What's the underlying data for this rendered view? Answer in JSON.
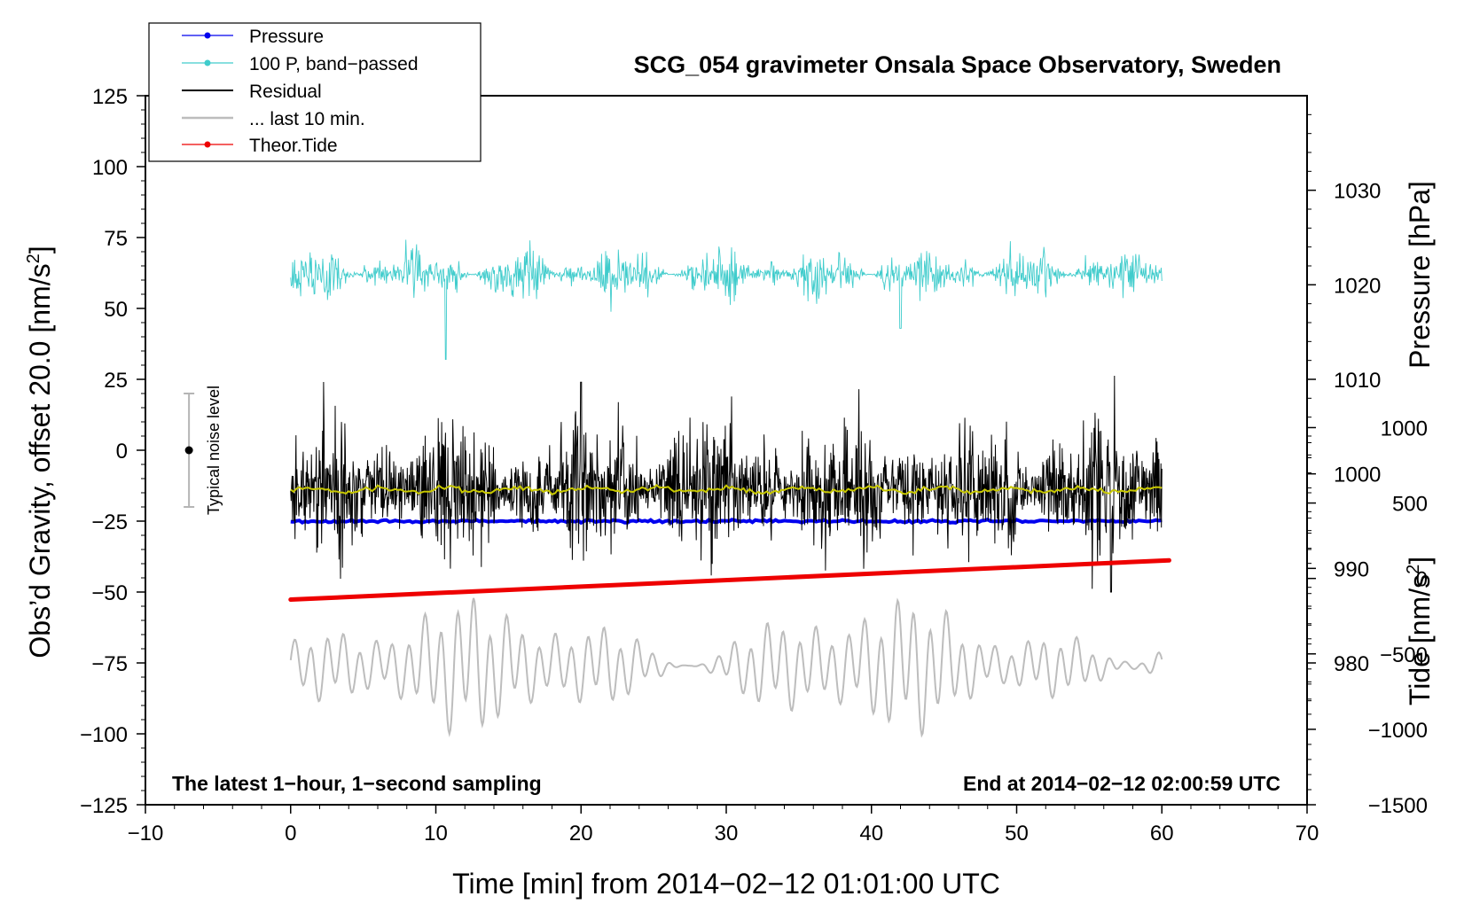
{
  "chart_data": {
    "type": "line",
    "title": "SCG_054 gravimeter Onsala Space Observatory, Sweden",
    "xlabel": "Time [min] from 2014−02−12 01:01:00 UTC",
    "ylabel_left": "Obs’d Gravity, offset 20.0 [nm/s",
    "ylabel_left_sup": "2",
    "ylabel_left_end": "]",
    "ylabel_right_pressure": "Pressure [hPa]",
    "ylabel_right_tide": "Tide [nm/s",
    "ylabel_right_tide_sup": "2",
    "ylabel_right_tide_end": "]",
    "xlim": [
      -10,
      70
    ],
    "ylim": [
      -125,
      125
    ],
    "x_ticks": [
      -10,
      0,
      10,
      20,
      30,
      40,
      50,
      60,
      70
    ],
    "x_tick_labels": [
      "−10",
      "0",
      "10",
      "20",
      "30",
      "40",
      "50",
      "60",
      "70"
    ],
    "y_ticks": [
      125,
      100,
      75,
      50,
      25,
      0,
      -25,
      -50,
      -75,
      -100,
      -125
    ],
    "y_tick_labels": [
      "125",
      "100",
      "75",
      "50",
      "25",
      "0",
      "−25",
      "−50",
      "−75",
      "−100",
      "−125"
    ],
    "pressure_ticks": [
      1030,
      1020,
      1010,
      1000,
      990,
      980
    ],
    "pressure_tick_labels": [
      "1030",
      "1020",
      "1010",
      "1000",
      "990",
      "980"
    ],
    "pressure_axis_range": [
      965,
      1040
    ],
    "tide_ticks": [
      1000,
      500,
      0,
      -500,
      -1000,
      -1500
    ],
    "tide_tick_labels": [
      "1000",
      "500",
      "0",
      "−500",
      "−1000",
      "−1500"
    ],
    "tide_axis_range": [
      -1500,
      3200
    ],
    "series": [
      {
        "name": "Pressure",
        "color": "#0000ee",
        "x_range": [
          0,
          60
        ],
        "level_hpa": 995.0,
        "noise_hpa": 0.15
      },
      {
        "name": "100 P, band−passed",
        "color": "#40cccc",
        "x_range": [
          0,
          60
        ],
        "center": 62,
        "amplitude": 6
      },
      {
        "name": "Residual",
        "color": "#000000",
        "x_range": [
          0,
          60
        ],
        "center": -14,
        "amplitude": 12
      },
      {
        "name": "... last 10 min.",
        "color": "#bdbdbd",
        "x_range": [
          0,
          60
        ],
        "center": -76,
        "amplitude": 14
      },
      {
        "name": "Theor.Tide",
        "color": "#ee0000",
        "x": [
          0,
          60.5
        ],
        "tide_nm_s2": [
          -140,
          120
        ]
      }
    ],
    "smoothed_residual": {
      "color": "#c8c800",
      "center": -14
    },
    "noise_bar": {
      "x": -7,
      "center": 0,
      "low": -20,
      "high": 20,
      "label": "Typical noise level"
    },
    "annotation_left": "The latest 1−hour, 1−second sampling",
    "annotation_right": "End at 2014−02−12 02:00:59 UTC",
    "legend_position": "top-left"
  }
}
